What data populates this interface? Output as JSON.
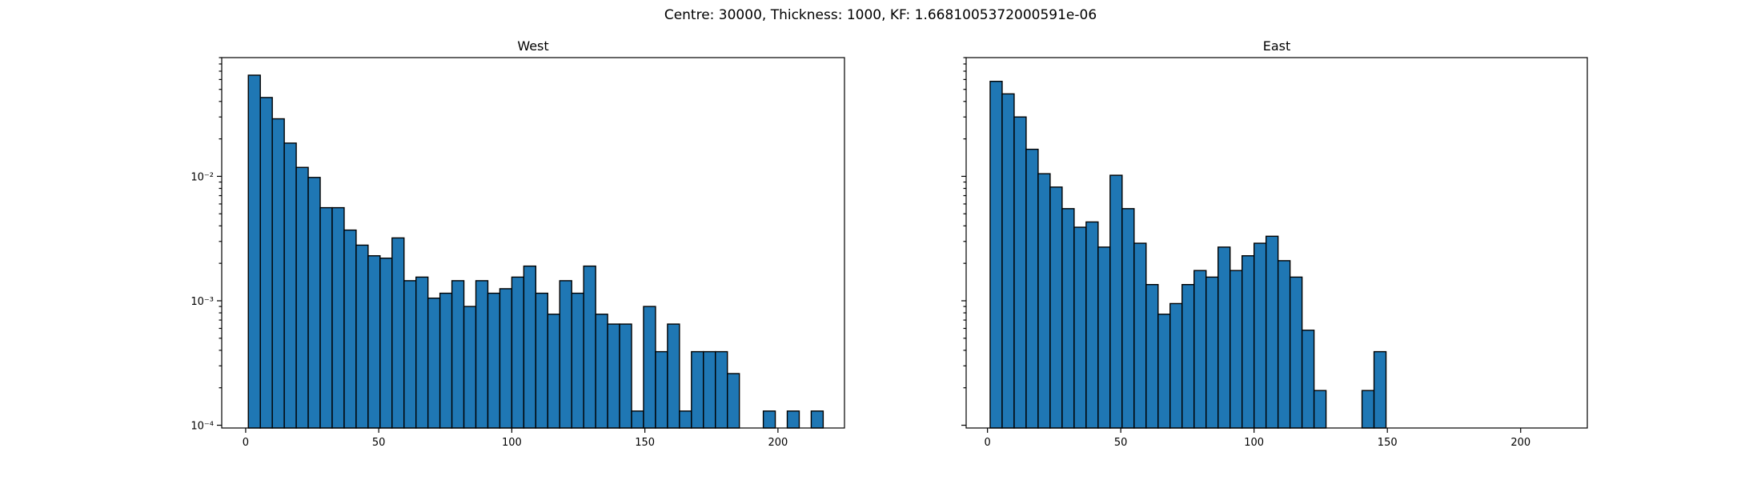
{
  "figure": {
    "suptitle": "Centre: 30000, Thickness: 1000, KF: 1.6681005372000591e-06",
    "bar_color": "#1f77b4",
    "edge_color": "#000000"
  },
  "chart_data": [
    {
      "type": "bar",
      "title": "West",
      "xlabel": "",
      "ylabel": "",
      "yscale": "log",
      "xlim": [
        -9,
        225
      ],
      "ylim": [
        9.5e-05,
        0.09
      ],
      "bin_start": 1,
      "bin_width": 4.5,
      "xticks": [
        0,
        50,
        100,
        150,
        200
      ],
      "xtick_labels": [
        "0",
        "50",
        "100",
        "150",
        "200"
      ],
      "yticks": [
        0.0001,
        0.001,
        0.01
      ],
      "ytick_labels": [
        "10⁻⁴",
        "10⁻³",
        "10⁻²"
      ],
      "values": [
        0.065,
        0.043,
        0.029,
        0.0185,
        0.0118,
        0.0098,
        0.0056,
        0.0056,
        0.0037,
        0.0028,
        0.0023,
        0.0022,
        0.0032,
        0.00145,
        0.00155,
        0.00105,
        0.00115,
        0.00145,
        0.0009,
        0.00145,
        0.00115,
        0.00125,
        0.00155,
        0.0019,
        0.00115,
        0.00078,
        0.00145,
        0.00115,
        0.0019,
        0.00078,
        0.00065,
        0.00065,
        0.00013,
        0.0009,
        0.00039,
        0.00065,
        0.00013,
        0.00039,
        0.00039,
        0.00039,
        0.00026,
        0,
        0,
        0.00013,
        0,
        0.00013,
        0,
        0.00013
      ]
    },
    {
      "type": "bar",
      "title": "East",
      "xlabel": "",
      "ylabel": "",
      "yscale": "log",
      "xlim": [
        -8,
        225
      ],
      "ylim": [
        9.5e-05,
        0.09
      ],
      "bin_start": 1,
      "bin_width": 4.5,
      "xticks": [
        0,
        50,
        100,
        150,
        200
      ],
      "xtick_labels": [
        "0",
        "50",
        "100",
        "150",
        "200"
      ],
      "yticks": [
        0.0001,
        0.001,
        0.01
      ],
      "ytick_labels": [
        "",
        "",
        ""
      ],
      "values": [
        0.058,
        0.046,
        0.03,
        0.0165,
        0.0105,
        0.0082,
        0.0055,
        0.0039,
        0.0043,
        0.0027,
        0.0102,
        0.0055,
        0.0029,
        0.00135,
        0.00078,
        0.00095,
        0.00135,
        0.00175,
        0.00155,
        0.0027,
        0.00175,
        0.0023,
        0.0029,
        0.0033,
        0.0021,
        0.00155,
        0.00058,
        0.00019,
        0,
        0,
        0,
        0.00019,
        0.00039
      ]
    }
  ]
}
